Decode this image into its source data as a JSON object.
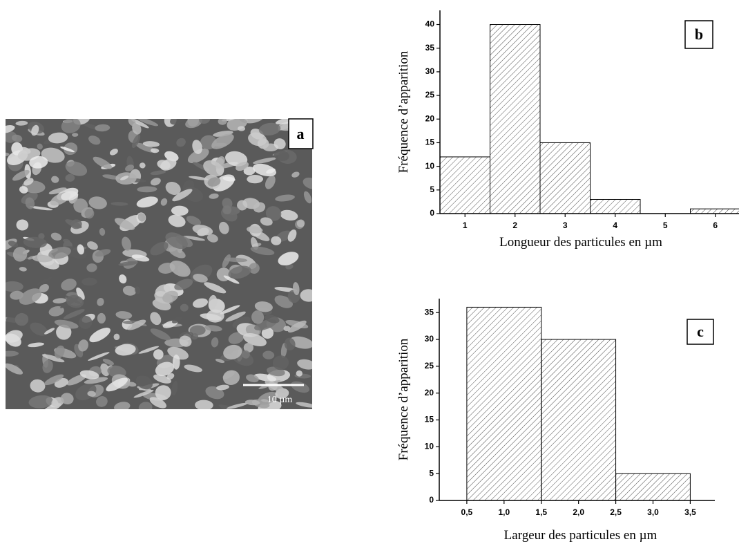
{
  "image": {
    "label": "a",
    "scale_bar": "10 µm"
  },
  "chart_data": [
    {
      "type": "histogram",
      "panel_label": "b",
      "xlabel": "Longueur des particules en µm",
      "ylabel": "Fréquence d’apparition",
      "bins": [
        0.5,
        1.5,
        2.5,
        3.5,
        4.5,
        5.5,
        6.5
      ],
      "values": [
        12,
        40,
        15,
        3,
        0,
        1
      ],
      "xlim": [
        0.5,
        6.5
      ],
      "xticks": [
        1,
        2,
        3,
        4,
        5,
        6
      ],
      "ylim": [
        0,
        43
      ],
      "yticks": [
        0,
        5,
        10,
        15,
        20,
        25,
        30,
        35,
        40
      ]
    },
    {
      "type": "histogram",
      "panel_label": "c",
      "xlabel": "Largeur des particules en µm",
      "ylabel": "Fréquence d’apparition",
      "bins": [
        0.5,
        1.5,
        2.5,
        3.5
      ],
      "values": [
        36,
        30,
        5
      ],
      "xlim": [
        0.13,
        3.83
      ],
      "xticks": [
        {
          "value": 0.5,
          "label": "0,5"
        },
        {
          "value": 1.0,
          "label": "1,0"
        },
        {
          "value": 1.5,
          "label": "1,5"
        },
        {
          "value": 2.0,
          "label": "2,0"
        },
        {
          "value": 2.5,
          "label": "2,5"
        },
        {
          "value": 3.0,
          "label": "3,0"
        },
        {
          "value": 3.5,
          "label": "3,5"
        }
      ],
      "ylim": [
        0,
        37.6
      ],
      "yticks": [
        0,
        5,
        10,
        15,
        20,
        25,
        30,
        35
      ]
    }
  ]
}
